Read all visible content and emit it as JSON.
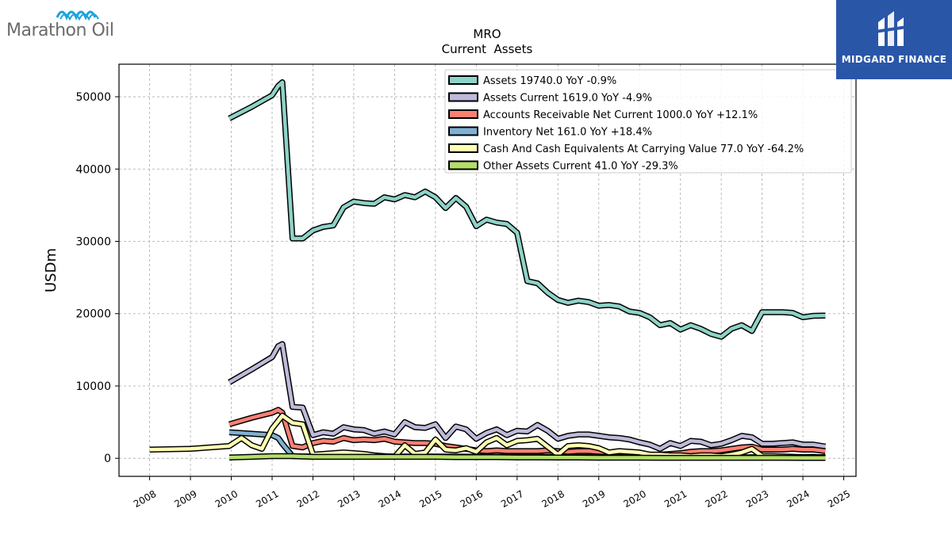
{
  "logos": {
    "left": {
      "text": "Marathon Oil"
    },
    "right": {
      "text": "MIDGARD FINANCE"
    }
  },
  "chart_data": {
    "type": "line",
    "title": "MRO",
    "subtitle": "Current  Assets",
    "ylabel": "USDm",
    "xlim": [
      2007.25,
      2025.3
    ],
    "ylim": [
      -2500,
      54500
    ],
    "xticks": [
      2008,
      2009,
      2010,
      2011,
      2012,
      2013,
      2014,
      2015,
      2016,
      2017,
      2018,
      2019,
      2020,
      2021,
      2022,
      2023,
      2024,
      2025
    ],
    "yticks": [
      0,
      10000,
      20000,
      30000,
      40000,
      50000
    ],
    "grid": true,
    "legend_position": "top-right",
    "series": [
      {
        "name": "Assets  19740.0 YoY -0.9%",
        "color": "#8dd3c7",
        "x": [
          2009.95,
          2010.5,
          2011.0,
          2011.15,
          2011.25,
          2011.5,
          2011.75,
          2012.0,
          2012.25,
          2012.5,
          2012.75,
          2013.0,
          2013.25,
          2013.5,
          2013.75,
          2014.0,
          2014.25,
          2014.5,
          2014.75,
          2015.0,
          2015.25,
          2015.5,
          2015.75,
          2016.0,
          2016.25,
          2016.5,
          2016.75,
          2017.0,
          2017.25,
          2017.5,
          2017.75,
          2018.0,
          2018.25,
          2018.5,
          2018.75,
          2019.0,
          2019.25,
          2019.5,
          2019.75,
          2020.0,
          2020.25,
          2020.5,
          2020.75,
          2021.0,
          2021.25,
          2021.5,
          2021.75,
          2022.0,
          2022.25,
          2022.5,
          2022.75,
          2023.0,
          2023.25,
          2023.5,
          2023.75,
          2024.0,
          2024.25,
          2024.55
        ],
        "y": [
          47000,
          48600,
          50200,
          51500,
          52000,
          30400,
          30400,
          31500,
          32000,
          32200,
          34700,
          35500,
          35300,
          35200,
          36100,
          35800,
          36400,
          36100,
          36900,
          36100,
          34600,
          36000,
          34800,
          32100,
          33000,
          32600,
          32400,
          31200,
          24500,
          24200,
          22900,
          21900,
          21500,
          21800,
          21600,
          21100,
          21200,
          21000,
          20300,
          20100,
          19500,
          18400,
          18700,
          17800,
          18400,
          17900,
          17200,
          16800,
          17900,
          18400,
          17600,
          20200,
          20200,
          20200,
          20100,
          19500,
          19700,
          19740
        ]
      },
      {
        "name": "Assets Current  1619.0 YoY -4.9%",
        "color": "#bebada",
        "x": [
          2009.95,
          2010.5,
          2011.0,
          2011.15,
          2011.25,
          2011.5,
          2011.75,
          2012.0,
          2012.25,
          2012.5,
          2012.75,
          2013.0,
          2013.25,
          2013.5,
          2013.75,
          2014.0,
          2014.25,
          2014.5,
          2014.75,
          2015.0,
          2015.25,
          2015.5,
          2015.75,
          2016.0,
          2016.25,
          2016.5,
          2016.75,
          2017.0,
          2017.25,
          2017.5,
          2017.75,
          2018.0,
          2018.25,
          2018.5,
          2018.75,
          2019.0,
          2019.25,
          2019.5,
          2019.75,
          2020.0,
          2020.25,
          2020.5,
          2020.75,
          2021.0,
          2021.25,
          2021.5,
          2021.75,
          2022.0,
          2022.25,
          2022.5,
          2022.75,
          2023.0,
          2023.25,
          2023.5,
          2023.75,
          2024.0,
          2024.25,
          2024.55
        ],
        "y": [
          10500,
          12300,
          14000,
          15500,
          15800,
          7100,
          7000,
          3200,
          3600,
          3400,
          4300,
          4000,
          3900,
          3400,
          3700,
          3300,
          5000,
          4300,
          4200,
          4700,
          2800,
          4400,
          4000,
          2700,
          3500,
          4000,
          3200,
          3800,
          3700,
          4600,
          3800,
          2700,
          3100,
          3300,
          3300,
          3100,
          2900,
          2800,
          2600,
          2200,
          1900,
          1300,
          2100,
          1700,
          2400,
          2300,
          1800,
          2000,
          2500,
          3100,
          2900,
          2000,
          2000,
          2100,
          2200,
          1900,
          1900,
          1619
        ]
      },
      {
        "name": "Accounts Receivable Net Current  1000.0 YoY +12.1%",
        "color": "#fb8072",
        "x": [
          2009.95,
          2010.5,
          2011.0,
          2011.15,
          2011.25,
          2011.5,
          2011.75,
          2012.0,
          2012.25,
          2012.5,
          2012.75,
          2013.0,
          2013.25,
          2013.5,
          2013.75,
          2014.0,
          2014.25,
          2014.5,
          2014.75,
          2015.0,
          2015.25,
          2015.5,
          2015.75,
          2016.0,
          2016.25,
          2016.5,
          2016.75,
          2017.0,
          2017.25,
          2017.5,
          2017.75,
          2018.0,
          2018.25,
          2018.5,
          2018.75,
          2019.0,
          2019.25,
          2019.5,
          2019.75,
          2020.0,
          2020.25,
          2020.5,
          2020.75,
          2021.0,
          2021.25,
          2021.5,
          2021.75,
          2022.0,
          2022.25,
          2022.5,
          2022.75,
          2023.0,
          2023.25,
          2023.5,
          2023.75,
          2024.0,
          2024.25,
          2024.55
        ],
        "y": [
          4700,
          5600,
          6300,
          6700,
          6300,
          1700,
          1500,
          2100,
          2400,
          2300,
          2800,
          2500,
          2600,
          2500,
          2700,
          2300,
          2200,
          2100,
          2100,
          2000,
          1700,
          1500,
          1300,
          1100,
          1000,
          1100,
          1000,
          1000,
          1000,
          1000,
          1100,
          1000,
          900,
          1000,
          1000,
          900,
          800,
          700,
          700,
          600,
          500,
          500,
          600,
          700,
          900,
          1000,
          1000,
          1100,
          1300,
          1500,
          1600,
          1200,
          1200,
          1200,
          1300,
          1200,
          1200,
          1000
        ]
      },
      {
        "name": "Inventory Net  161.0 YoY +18.4%",
        "color": "#80b1d3",
        "x": [
          2009.95,
          2010.5,
          2011.0,
          2011.15,
          2011.25,
          2011.5,
          2011.75,
          2012.0,
          2012.5,
          2013.0,
          2013.5,
          2014.0,
          2014.5,
          2015.0,
          2015.5,
          2016.0,
          2016.5,
          2017.0,
          2017.5,
          2018.0,
          2018.5,
          2019.0,
          2019.5,
          2020.0,
          2020.5,
          2021.0,
          2021.5,
          2022.0,
          2022.5,
          2023.0,
          2023.5,
          2024.0,
          2024.55
        ],
        "y": [
          3600,
          3400,
          3200,
          2800,
          2000,
          300,
          250,
          250,
          260,
          260,
          250,
          250,
          240,
          240,
          230,
          220,
          220,
          210,
          200,
          190,
          180,
          170,
          170,
          160,
          150,
          130,
          120,
          120,
          130,
          140,
          150,
          150,
          161
        ]
      },
      {
        "name": "Cash And Cash Equivalents At Carrying Value  77.0 YoY -64.2%",
        "color": "#ffffb3",
        "x": [
          2008.0,
          2009.0,
          2009.95,
          2010.25,
          2010.5,
          2010.75,
          2011.0,
          2011.25,
          2011.5,
          2011.75,
          2012.0,
          2012.25,
          2012.5,
          2012.75,
          2013.0,
          2013.25,
          2013.5,
          2013.75,
          2014.0,
          2014.25,
          2014.5,
          2014.75,
          2015.0,
          2015.25,
          2015.5,
          2015.75,
          2016.0,
          2016.25,
          2016.5,
          2016.75,
          2017.0,
          2017.25,
          2017.5,
          2017.75,
          2018.0,
          2018.25,
          2018.5,
          2018.75,
          2019.0,
          2019.25,
          2019.5,
          2019.75,
          2020.0,
          2020.25,
          2020.5,
          2020.75,
          2021.0,
          2021.25,
          2021.5,
          2021.75,
          2022.0,
          2022.25,
          2022.5,
          2022.75,
          2023.0,
          2023.25,
          2023.5,
          2023.75,
          2024.0,
          2024.25,
          2024.55
        ],
        "y": [
          1200,
          1300,
          1700,
          2800,
          1800,
          1300,
          4100,
          5900,
          4900,
          4700,
          500,
          600,
          700,
          800,
          700,
          600,
          400,
          300,
          200,
          1800,
          600,
          800,
          2600,
          1200,
          1100,
          1400,
          900,
          2200,
          2800,
          1800,
          2400,
          2500,
          2700,
          1600,
          500,
          1700,
          1800,
          1700,
          1400,
          800,
          1000,
          900,
          800,
          500,
          500,
          400,
          400,
          300,
          400,
          400,
          300,
          500,
          800,
          1300,
          300,
          300,
          250,
          200,
          150,
          200,
          77
        ]
      },
      {
        "name": "Other Assets Current  41.0 YoY -29.3%",
        "color": "#b3de69",
        "x": [
          2009.95,
          2010.5,
          2011.0,
          2011.5,
          2012.0,
          2012.5,
          2013.0,
          2013.5,
          2014.0,
          2014.5,
          2015.0,
          2015.5,
          2016.0,
          2016.5,
          2017.0,
          2017.5,
          2018.0,
          2018.5,
          2019.0,
          2019.5,
          2020.0,
          2020.5,
          2021.0,
          2021.5,
          2022.0,
          2022.5,
          2023.0,
          2023.5,
          2024.0,
          2024.55
        ],
        "y": [
          100,
          200,
          300,
          300,
          200,
          200,
          200,
          200,
          200,
          200,
          200,
          150,
          150,
          150,
          120,
          120,
          100,
          100,
          80,
          80,
          80,
          70,
          60,
          60,
          60,
          60,
          60,
          60,
          58,
          41
        ]
      }
    ]
  }
}
